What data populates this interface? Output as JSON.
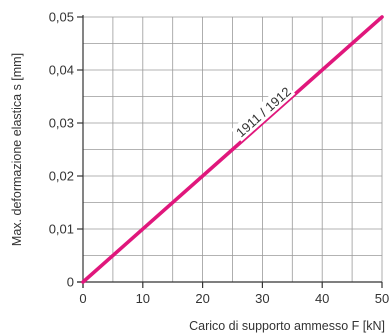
{
  "chart_data": {
    "type": "line",
    "xlabel": "Carico di supporto ammesso F [kN]",
    "ylabel": "Max. deformazione elastica s [mm]",
    "xlim": [
      0,
      50
    ],
    "ylim": [
      0,
      0.05
    ],
    "x_ticks": [
      0,
      10,
      20,
      30,
      40,
      50
    ],
    "x_tick_labels": [
      "0",
      "10",
      "20",
      "30",
      "40",
      "50"
    ],
    "y_ticks": [
      0,
      0.01,
      0.02,
      0.03,
      0.04,
      0.05
    ],
    "y_tick_labels": [
      "0",
      "0,01",
      "0,02",
      "0,03",
      "0,04",
      "0,05"
    ],
    "grid": true,
    "series": [
      {
        "name": "1911 / 1912",
        "x": [
          0,
          50
        ],
        "y": [
          0,
          0.05
        ],
        "color": "#e0177c"
      }
    ]
  }
}
